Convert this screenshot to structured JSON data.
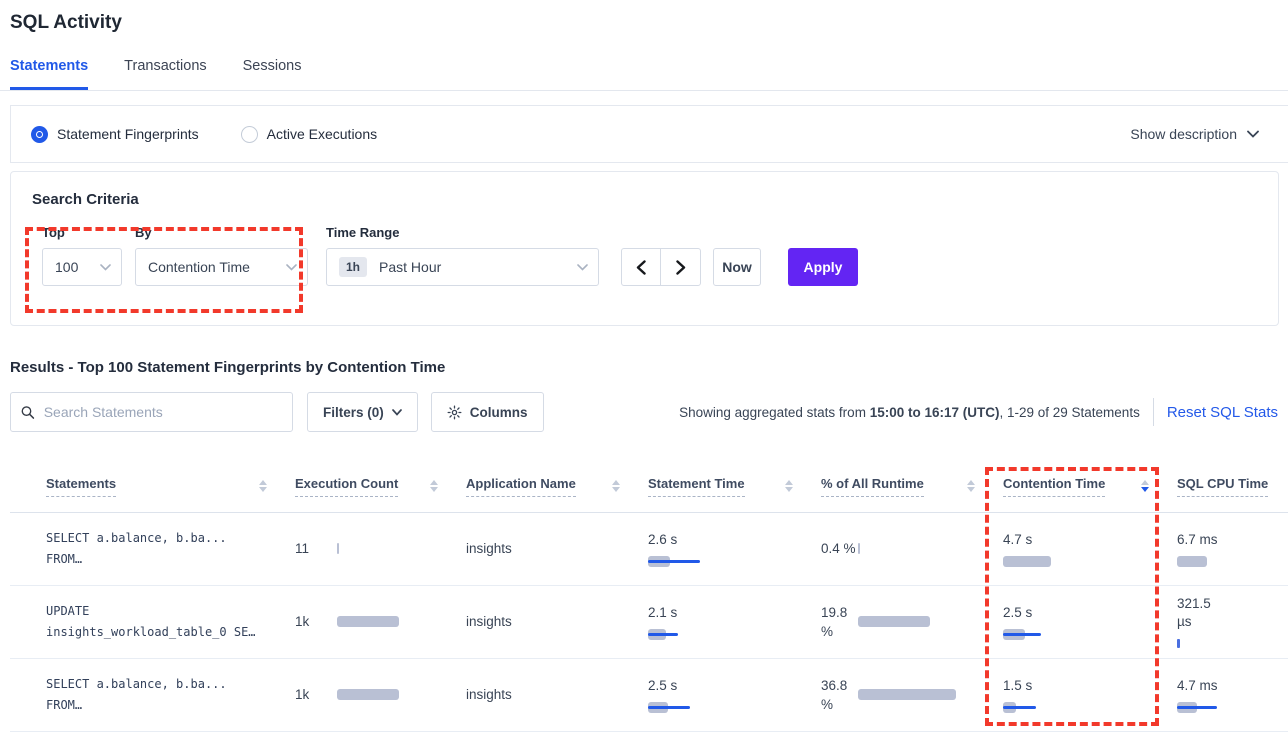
{
  "page": {
    "title": "SQL Activity"
  },
  "tabs": {
    "statements": "Statements",
    "transactions": "Transactions",
    "sessions": "Sessions"
  },
  "view_toggle": {
    "fingerprints_label": "Statement Fingerprints",
    "active_exec_label": "Active Executions",
    "show_description": "Show description"
  },
  "icons": {
    "search": "search-icon",
    "gear": "gear-icon",
    "chevron_down": "chevron-down-icon",
    "chevron_left": "chevron-left-icon",
    "chevron_right": "chevron-right-icon",
    "sort": "sort-arrows-icon"
  },
  "colors": {
    "accent_blue": "#2159e8",
    "apply_purple": "#6325f3",
    "bar_gray": "#b9c0d4",
    "bar_blue": "#2159e8",
    "annotation_red": "#f2392b",
    "link_blue": "#2359e9"
  },
  "search_criteria": {
    "title": "Search Criteria",
    "top": {
      "label": "Top",
      "value": "100"
    },
    "by": {
      "label": "By",
      "value": "Contention Time"
    },
    "time_range": {
      "label": "Time Range",
      "badge": "1h",
      "value": "Past Hour"
    },
    "now_label": "Now",
    "apply_label": "Apply"
  },
  "results": {
    "heading": "Results - Top 100 Statement Fingerprints by Contention Time",
    "search_placeholder": "Search Statements",
    "filters_label": "Filters (0)",
    "columns_label": "Columns",
    "stats_prefix": "Showing aggregated stats from ",
    "stats_bold": "15:00 to 16:17 (UTC)",
    "stats_suffix": ", 1-29 of 29 Statements",
    "reset_label": "Reset SQL Stats"
  },
  "table": {
    "columns": {
      "statements": "Statements",
      "exec_count": "Execution Count",
      "app_name": "Application Name",
      "stmt_time": "Statement Time",
      "pct_runtime": "% of All Runtime",
      "contention": "Contention Time",
      "sql_cpu": "SQL CPU Time"
    },
    "sorted_by": "Contention Time",
    "sort_direction": "desc",
    "rows": [
      {
        "statement_line1": "SELECT a.balance, b.ba...",
        "statement_line2": "FROM…",
        "exec_count": "11",
        "app": "insights",
        "stmt_time": "2.6 s",
        "pct_l1": "0.4 %",
        "pct_l2": "",
        "contention": "4.7 s",
        "cpu_l1": "6.7 ms",
        "cpu_l2": "",
        "bars": {
          "exec": {
            "g": 2,
            "l": 0,
            "t": 0
          },
          "stmt": {
            "g": 22,
            "l": 52,
            "t": 0
          },
          "pct": {
            "g": 2,
            "l": 0,
            "t": 0
          },
          "cont": {
            "g": 48,
            "l": 0,
            "t": 0
          },
          "cpu": {
            "g": 30,
            "l": 0,
            "t": 0
          }
        }
      },
      {
        "statement_line1": "UPDATE",
        "statement_line2": "insights_workload_table_0 SE…",
        "exec_count": "1k",
        "app": "insights",
        "stmt_time": "2.1 s",
        "pct_l1": "19.8",
        "pct_l2": "%",
        "contention": "2.5 s",
        "cpu_l1": "321.5",
        "cpu_l2": "µs",
        "bars": {
          "exec": {
            "g": 62,
            "l": 0,
            "t": 0
          },
          "stmt": {
            "g": 18,
            "l": 30,
            "t": 0
          },
          "pct": {
            "g": 72,
            "l": 0,
            "t": 0
          },
          "cont": {
            "g": 22,
            "l": 38,
            "t": 0
          },
          "cpu": {
            "g": 0,
            "l": 0,
            "t": 3
          }
        }
      },
      {
        "statement_line1": "SELECT a.balance, b.ba...",
        "statement_line2": "FROM…",
        "exec_count": "1k",
        "app": "insights",
        "stmt_time": "2.5 s",
        "pct_l1": "36.8",
        "pct_l2": "%",
        "contention": "1.5 s",
        "cpu_l1": "4.7 ms",
        "cpu_l2": "",
        "bars": {
          "exec": {
            "g": 62,
            "l": 0,
            "t": 0
          },
          "stmt": {
            "g": 20,
            "l": 42,
            "t": 0
          },
          "pct": {
            "g": 98,
            "l": 0,
            "t": 0
          },
          "cont": {
            "g": 13,
            "l": 33,
            "t": 0
          },
          "cpu": {
            "g": 20,
            "l": 40,
            "t": 0
          }
        }
      }
    ]
  }
}
